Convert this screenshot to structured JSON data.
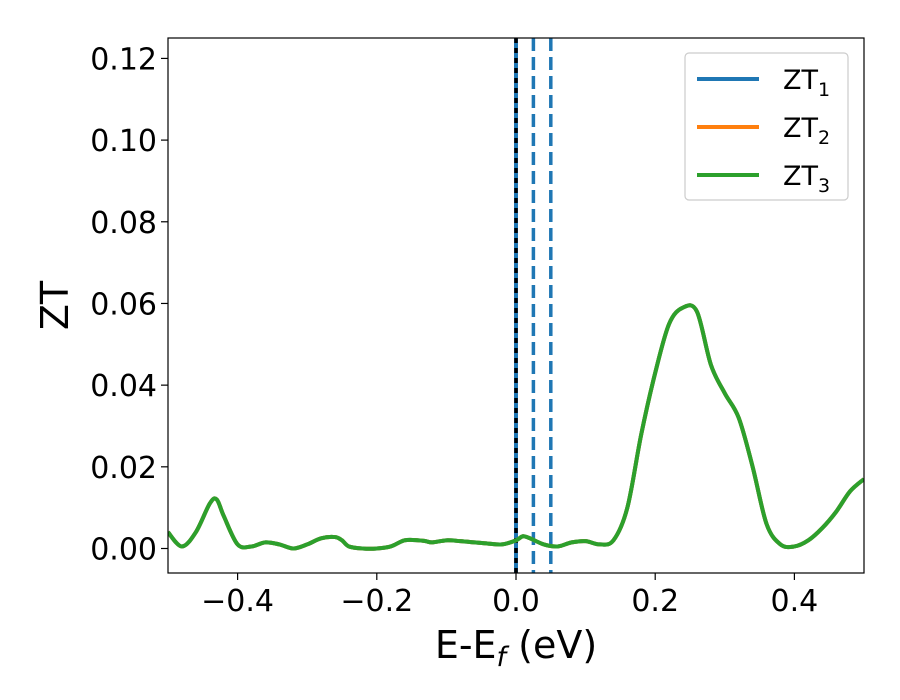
{
  "chart_data": {
    "type": "line",
    "xlabel": "E-E_f (eV)",
    "xlabel_parts": {
      "prefix": "E-E",
      "subscript": "f",
      "suffix": " (eV)"
    },
    "ylabel": "ZT",
    "xlim": [
      -0.5,
      0.5
    ],
    "ylim": [
      -0.006,
      0.125
    ],
    "xticks": [
      -0.4,
      -0.2,
      0.0,
      0.2,
      0.4
    ],
    "xtick_labels": [
      "−0.4",
      "−0.2",
      "0.0",
      "0.2",
      "0.4"
    ],
    "yticks": [
      0.0,
      0.02,
      0.04,
      0.06,
      0.08,
      0.1,
      0.12
    ],
    "ytick_labels": [
      "0.00",
      "0.02",
      "0.04",
      "0.06",
      "0.08",
      "0.10",
      "0.12"
    ],
    "grid": false,
    "legend_position": "top-right",
    "x": [
      -0.5,
      -0.48,
      -0.46,
      -0.44,
      -0.43,
      -0.42,
      -0.4,
      -0.38,
      -0.36,
      -0.34,
      -0.32,
      -0.3,
      -0.28,
      -0.26,
      -0.25,
      -0.24,
      -0.22,
      -0.2,
      -0.18,
      -0.16,
      -0.14,
      -0.13,
      -0.12,
      -0.1,
      -0.08,
      -0.06,
      -0.04,
      -0.02,
      0.0,
      0.01,
      0.02,
      0.04,
      0.06,
      0.08,
      0.1,
      0.12,
      0.14,
      0.16,
      0.18,
      0.2,
      0.22,
      0.24,
      0.26,
      0.28,
      0.3,
      0.32,
      0.34,
      0.36,
      0.38,
      0.4,
      0.42,
      0.44,
      0.46,
      0.48,
      0.5
    ],
    "series": [
      {
        "name": "ZT",
        "subscript": "1",
        "color": "#1f77b4",
        "values": [
          0.004,
          0.0005,
          0.004,
          0.011,
          0.012,
          0.008,
          0.001,
          0.0005,
          0.0015,
          0.001,
          0.0,
          0.001,
          0.0025,
          0.0028,
          0.002,
          0.0005,
          0.0,
          0.0,
          0.0005,
          0.002,
          0.002,
          0.0018,
          0.0015,
          0.002,
          0.0018,
          0.0015,
          0.0012,
          0.001,
          0.002,
          0.003,
          0.0025,
          0.001,
          0.0005,
          0.0015,
          0.0018,
          0.001,
          0.002,
          0.01,
          0.028,
          0.043,
          0.055,
          0.059,
          0.058,
          0.045,
          0.038,
          0.032,
          0.02,
          0.006,
          0.001,
          0.0005,
          0.002,
          0.005,
          0.009,
          0.014,
          0.017
        ]
      },
      {
        "name": "ZT",
        "subscript": "2",
        "color": "#ff7f0e",
        "values": [
          0.004,
          0.0005,
          0.004,
          0.011,
          0.012,
          0.008,
          0.001,
          0.0005,
          0.0015,
          0.001,
          0.0,
          0.001,
          0.0025,
          0.0028,
          0.002,
          0.0005,
          0.0,
          0.0,
          0.0005,
          0.002,
          0.002,
          0.0018,
          0.0015,
          0.002,
          0.0018,
          0.0015,
          0.0012,
          0.001,
          0.002,
          0.003,
          0.0025,
          0.001,
          0.0005,
          0.0015,
          0.0018,
          0.001,
          0.002,
          0.01,
          0.028,
          0.043,
          0.055,
          0.059,
          0.058,
          0.045,
          0.038,
          0.032,
          0.02,
          0.006,
          0.001,
          0.0005,
          0.002,
          0.005,
          0.009,
          0.014,
          0.017
        ]
      },
      {
        "name": "ZT",
        "subscript": "3",
        "color": "#2ca02c",
        "values": [
          0.004,
          0.0005,
          0.004,
          0.011,
          0.012,
          0.008,
          0.001,
          0.0005,
          0.0015,
          0.001,
          0.0,
          0.001,
          0.0025,
          0.0028,
          0.002,
          0.0005,
          0.0,
          0.0,
          0.0005,
          0.002,
          0.002,
          0.0018,
          0.0015,
          0.002,
          0.0018,
          0.0015,
          0.0012,
          0.001,
          0.002,
          0.003,
          0.0025,
          0.001,
          0.0005,
          0.0015,
          0.0018,
          0.001,
          0.002,
          0.01,
          0.028,
          0.043,
          0.055,
          0.059,
          0.058,
          0.045,
          0.038,
          0.032,
          0.02,
          0.006,
          0.001,
          0.0005,
          0.002,
          0.005,
          0.009,
          0.014,
          0.017
        ]
      }
    ],
    "vlines": [
      {
        "x": 0.0,
        "style": "solid",
        "color": "#1f77b4"
      },
      {
        "x": 0.0,
        "style": "dotted",
        "color": "#000000"
      },
      {
        "x": 0.025,
        "style": "dashed",
        "color": "#1f77b4"
      },
      {
        "x": 0.05,
        "style": "dashed",
        "color": "#1f77b4"
      }
    ]
  }
}
